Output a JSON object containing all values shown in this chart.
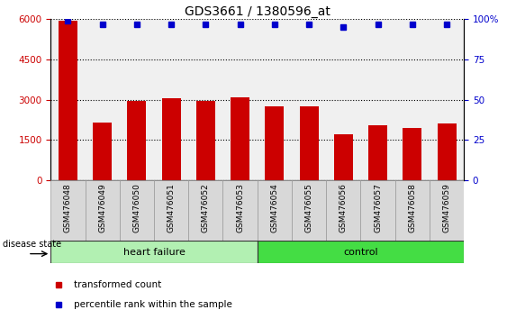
{
  "title": "GDS3661 / 1380596_at",
  "samples": [
    "GSM476048",
    "GSM476049",
    "GSM476050",
    "GSM476051",
    "GSM476052",
    "GSM476053",
    "GSM476054",
    "GSM476055",
    "GSM476056",
    "GSM476057",
    "GSM476058",
    "GSM476059"
  ],
  "bar_values": [
    5950,
    2150,
    2950,
    3050,
    2950,
    3100,
    2750,
    2750,
    1700,
    2050,
    1950,
    2100
  ],
  "percentile_values": [
    99,
    97,
    97,
    97,
    97,
    97,
    97,
    97,
    95,
    97,
    97,
    97
  ],
  "bar_color": "#cc0000",
  "dot_color": "#0000cc",
  "ylim_left": [
    0,
    6000
  ],
  "ylim_right": [
    0,
    100
  ],
  "yticks_left": [
    0,
    1500,
    3000,
    4500,
    6000
  ],
  "yticks_right": [
    0,
    25,
    50,
    75,
    100
  ],
  "hf_color": "#b2f0b2",
  "ctrl_color": "#44dd44",
  "legend_items": [
    {
      "label": "transformed count",
      "color": "#cc0000"
    },
    {
      "label": "percentile rank within the sample",
      "color": "#0000cc"
    }
  ],
  "disease_state_label": "disease state",
  "plot_bg_color": "#f0f0f0",
  "title_fontsize": 10
}
